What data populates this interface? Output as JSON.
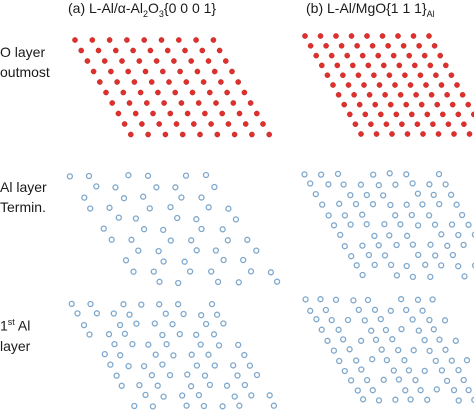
{
  "columns": [
    {
      "prefix": "(a) L-Al/α-Al",
      "sub1": "2",
      "mid": "O",
      "sub2": "3",
      "suffix": "{0 0 0 1}"
    },
    {
      "prefix": "(b) L-Al/MgO{1 1 1}",
      "sub": "Al"
    }
  ],
  "rows": [
    {
      "line1": "O layer",
      "line2": "outmost"
    },
    {
      "line1": "Al layer",
      "line2": "Termin."
    },
    {
      "sup_prefix": "1",
      "sup": "st",
      "line1_rest": " Al",
      "line2": "layer"
    }
  ],
  "colors": {
    "oxygen_atom": "#e0302c",
    "aluminum_atom": "#7fa8cc"
  }
}
